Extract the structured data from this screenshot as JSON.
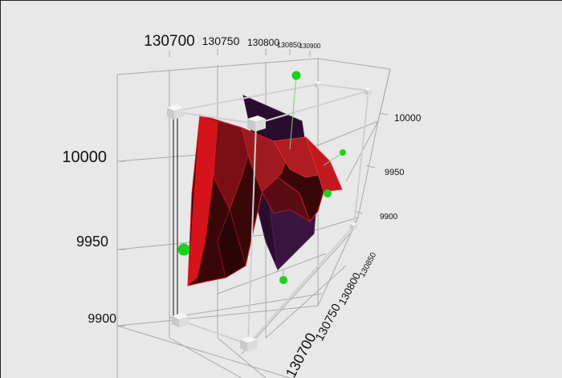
{
  "scene": {
    "background": "#e8e8e8",
    "top_axis_labels": [
      "130700",
      "130750",
      "130800",
      "130850",
      "130900"
    ],
    "left_axis_labels": [
      "10000",
      "9950",
      "9900"
    ],
    "right_axis_labels": [
      "10000",
      "9950",
      "9900"
    ],
    "bottom_axis_labels": [
      "130850",
      "130800",
      "130750",
      "130700"
    ],
    "surface_colors": {
      "front": "#d4141a",
      "front_dark": "#3a0709",
      "mid": "#8e1a20",
      "back": "#2a0d2e"
    },
    "marker_color": "#19d219",
    "handle_color": "#f4f4f4"
  }
}
